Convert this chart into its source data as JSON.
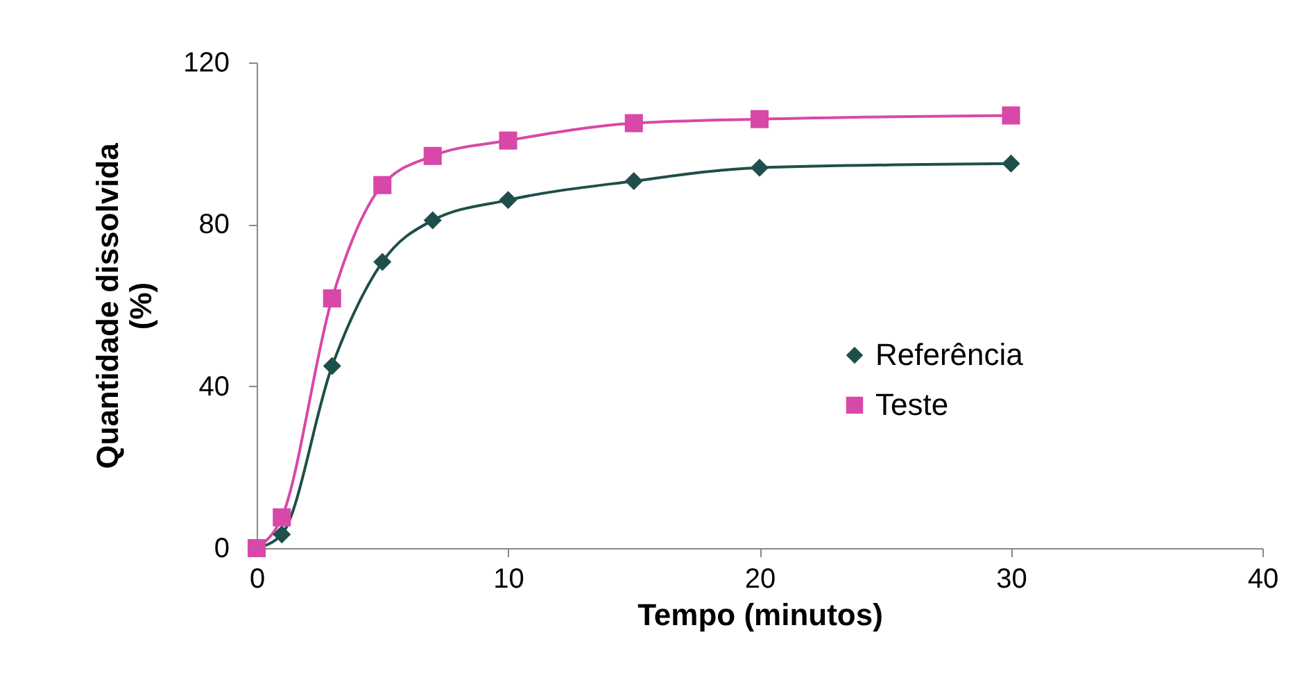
{
  "chart_data": {
    "type": "line",
    "xlabel": "Tempo (minutos)",
    "ylabel": "Quantidade dissolvida (%)",
    "x": [
      0,
      1,
      3,
      5,
      7,
      10,
      15,
      20,
      30
    ],
    "series": [
      {
        "name": "Referência",
        "color": "#1f4f4a",
        "marker": "diamond",
        "values": [
          0,
          3.4,
          45,
          70.7,
          81,
          86,
          90.7,
          94,
          95
        ]
      },
      {
        "name": "Teste",
        "color": "#d848a8",
        "marker": "square",
        "values": [
          0,
          7.6,
          61.7,
          89.7,
          96.9,
          100.7,
          105,
          106,
          106.9
        ]
      }
    ],
    "xlim": [
      0,
      40
    ],
    "xticks": [
      0,
      10,
      20,
      30,
      40
    ],
    "ylim": [
      0,
      120
    ],
    "yticks": [
      0,
      40,
      80,
      120
    ],
    "legend": "right",
    "grid": false,
    "line_style": "solid"
  }
}
